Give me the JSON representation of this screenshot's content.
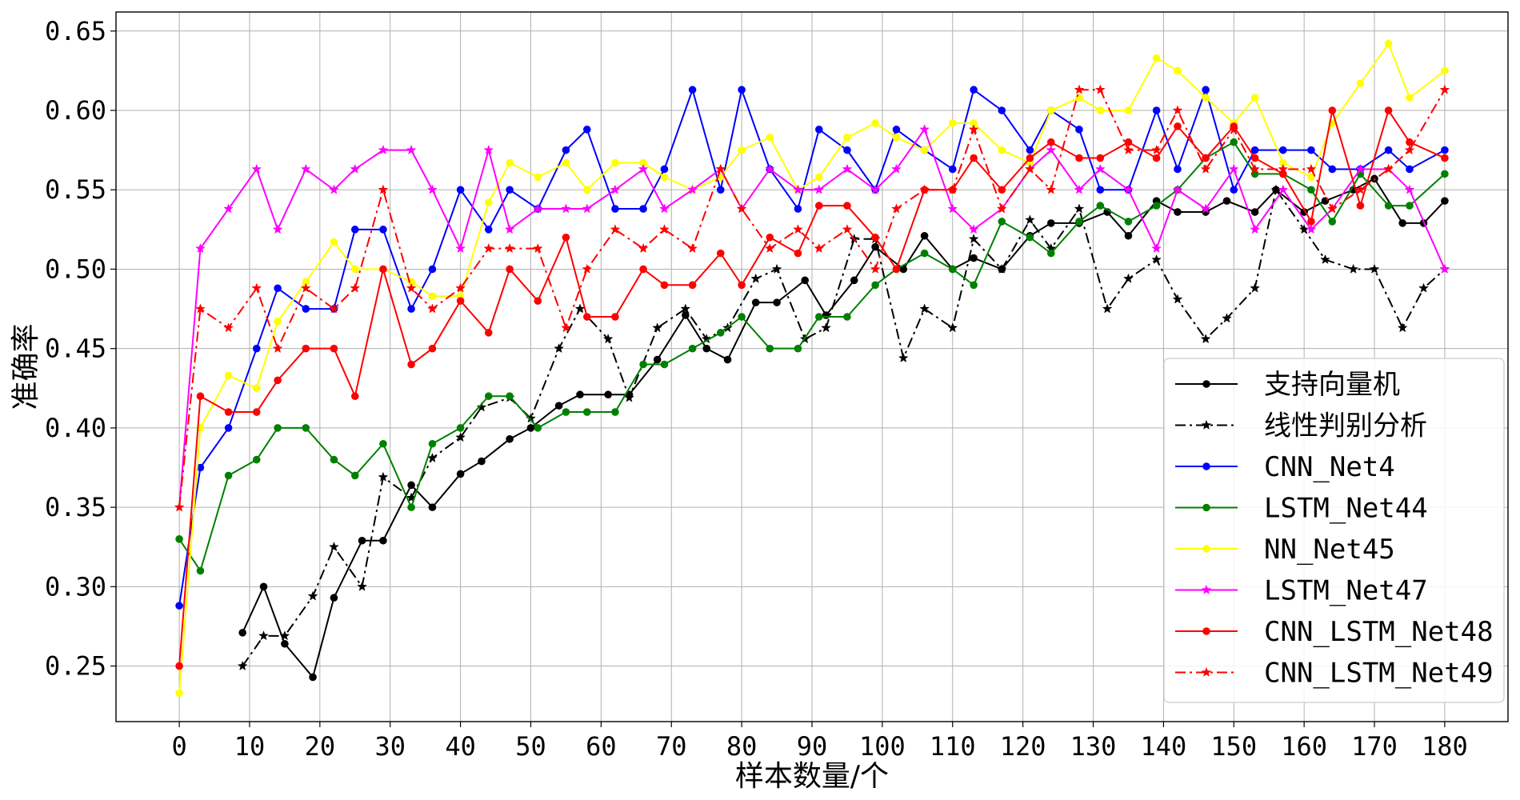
{
  "chart_data": {
    "type": "line",
    "title": "",
    "xlabel": "样本数量/个",
    "ylabel": "准确率",
    "xlim": [
      -9,
      189
    ],
    "ylim": [
      0.215,
      0.662
    ],
    "xticks": [
      0,
      10,
      20,
      30,
      40,
      50,
      60,
      70,
      80,
      90,
      100,
      110,
      120,
      130,
      140,
      150,
      160,
      170,
      180
    ],
    "yticks": [
      0.25,
      0.3,
      0.35,
      0.4,
      0.45,
      0.5,
      0.55,
      0.6,
      0.65
    ],
    "ytick_labels": [
      "0.25",
      "0.30",
      "0.35",
      "0.40",
      "0.45",
      "0.50",
      "0.55",
      "0.60",
      "0.65"
    ],
    "grid": true,
    "legend_position": "lower-right",
    "series": [
      {
        "name": "支持向量机",
        "color": "#000000",
        "dash": "solid",
        "marker": "circle",
        "x": [
          9,
          12,
          15,
          19,
          22,
          26,
          29,
          33,
          36,
          40,
          43,
          47,
          50,
          54,
          57,
          61,
          64,
          68,
          72,
          75,
          78,
          82,
          85,
          89,
          92,
          96,
          99,
          103,
          106,
          110,
          113,
          117,
          121,
          124,
          128,
          132,
          135,
          139,
          142,
          146,
          149,
          153,
          156,
          160,
          163,
          167,
          170,
          174,
          177,
          180
        ],
        "y": [
          0.271,
          0.3,
          0.264,
          0.243,
          0.293,
          0.329,
          0.329,
          0.364,
          0.35,
          0.371,
          0.379,
          0.393,
          0.4,
          0.414,
          0.421,
          0.421,
          0.421,
          0.443,
          0.471,
          0.45,
          0.443,
          0.479,
          0.479,
          0.493,
          0.471,
          0.493,
          0.514,
          0.5,
          0.521,
          0.5,
          0.507,
          0.5,
          0.521,
          0.529,
          0.529,
          0.536,
          0.521,
          0.543,
          0.536,
          0.536,
          0.543,
          0.536,
          0.55,
          0.536,
          0.543,
          0.55,
          0.557,
          0.529,
          0.529,
          0.543
        ]
      },
      {
        "name": "线性判别分析",
        "color": "#000000",
        "dash": "dashdot",
        "marker": "star",
        "x": [
          9,
          12,
          15,
          19,
          22,
          26,
          29,
          33,
          36,
          40,
          43,
          47,
          50,
          54,
          57,
          61,
          64,
          68,
          72,
          75,
          78,
          82,
          85,
          89,
          92,
          96,
          99,
          103,
          106,
          110,
          113,
          117,
          121,
          124,
          128,
          132,
          135,
          139,
          142,
          146,
          149,
          153,
          156,
          160,
          163,
          167,
          170,
          174,
          177,
          180
        ],
        "y": [
          0.25,
          0.269,
          0.269,
          0.294,
          0.325,
          0.3,
          0.369,
          0.356,
          0.381,
          0.394,
          0.413,
          0.419,
          0.406,
          0.45,
          0.475,
          0.456,
          0.419,
          0.463,
          0.475,
          0.456,
          0.463,
          0.494,
          0.5,
          0.456,
          0.463,
          0.519,
          0.519,
          0.444,
          0.475,
          0.463,
          0.519,
          0.5,
          0.531,
          0.513,
          0.538,
          0.475,
          0.494,
          0.506,
          0.481,
          0.456,
          0.469,
          0.488,
          0.55,
          0.525,
          0.506,
          0.5,
          0.5,
          0.463,
          0.488,
          0.5
        ]
      },
      {
        "name": "CNN_Net4",
        "color": "#0000ff",
        "dash": "solid",
        "marker": "circle",
        "x": [
          0,
          3,
          7,
          11,
          14,
          18,
          22,
          25,
          29,
          33,
          36,
          40,
          44,
          47,
          51,
          55,
          58,
          62,
          66,
          69,
          73,
          77,
          80,
          84,
          88,
          91,
          95,
          99,
          102,
          106,
          110,
          113,
          117,
          121,
          124,
          128,
          131,
          135,
          139,
          142,
          146,
          150,
          153,
          157,
          161,
          164,
          168,
          172,
          175,
          180
        ],
        "y": [
          0.288,
          0.375,
          0.4,
          0.45,
          0.488,
          0.475,
          0.475,
          0.525,
          0.525,
          0.475,
          0.5,
          0.55,
          0.525,
          0.55,
          0.538,
          0.575,
          0.588,
          0.538,
          0.538,
          0.563,
          0.613,
          0.55,
          0.613,
          0.563,
          0.538,
          0.588,
          0.575,
          0.55,
          0.588,
          0.575,
          0.563,
          0.613,
          0.6,
          0.575,
          0.6,
          0.588,
          0.55,
          0.55,
          0.6,
          0.563,
          0.613,
          0.55,
          0.575,
          0.575,
          0.575,
          0.563,
          0.563,
          0.575,
          0.563,
          0.575
        ]
      },
      {
        "name": "LSTM_Net44",
        "color": "#008000",
        "dash": "solid",
        "marker": "circle",
        "x": [
          0,
          3,
          7,
          11,
          14,
          18,
          22,
          25,
          29,
          33,
          36,
          40,
          44,
          47,
          51,
          55,
          58,
          62,
          66,
          69,
          73,
          77,
          80,
          84,
          88,
          91,
          95,
          99,
          102,
          106,
          110,
          113,
          117,
          121,
          124,
          128,
          131,
          135,
          139,
          142,
          146,
          150,
          153,
          157,
          161,
          164,
          168,
          172,
          175,
          180
        ],
        "y": [
          0.33,
          0.31,
          0.37,
          0.38,
          0.4,
          0.4,
          0.38,
          0.37,
          0.39,
          0.35,
          0.39,
          0.4,
          0.42,
          0.42,
          0.4,
          0.41,
          0.41,
          0.41,
          0.44,
          0.44,
          0.45,
          0.46,
          0.47,
          0.45,
          0.45,
          0.47,
          0.47,
          0.49,
          0.5,
          0.51,
          0.5,
          0.49,
          0.53,
          0.52,
          0.51,
          0.53,
          0.54,
          0.53,
          0.54,
          0.55,
          0.57,
          0.58,
          0.56,
          0.56,
          0.55,
          0.53,
          0.56,
          0.54,
          0.54,
          0.56
        ]
      },
      {
        "name": "NN_Net45",
        "color": "#ffff00",
        "dash": "solid",
        "marker": "circle",
        "x": [
          0,
          3,
          7,
          11,
          14,
          18,
          22,
          25,
          29,
          33,
          36,
          40,
          44,
          47,
          51,
          55,
          58,
          62,
          66,
          69,
          73,
          77,
          80,
          84,
          88,
          91,
          95,
          99,
          102,
          106,
          110,
          113,
          117,
          121,
          124,
          128,
          131,
          135,
          139,
          142,
          146,
          150,
          153,
          157,
          161,
          164,
          168,
          172,
          175,
          180
        ],
        "y": [
          0.233,
          0.4,
          0.433,
          0.425,
          0.467,
          0.492,
          0.517,
          0.5,
          0.5,
          0.492,
          0.483,
          0.483,
          0.542,
          0.567,
          0.558,
          0.567,
          0.55,
          0.567,
          0.567,
          0.558,
          0.55,
          0.558,
          0.575,
          0.583,
          0.55,
          0.558,
          0.583,
          0.592,
          0.583,
          0.575,
          0.592,
          0.592,
          0.575,
          0.567,
          0.6,
          0.608,
          0.6,
          0.6,
          0.633,
          0.625,
          0.608,
          0.592,
          0.608,
          0.567,
          0.558,
          0.592,
          0.617,
          0.642,
          0.608,
          0.625
        ]
      },
      {
        "name": "LSTM_Net47",
        "color": "#ff00ff",
        "dash": "solid",
        "marker": "star",
        "x": [
          0,
          3,
          7,
          11,
          14,
          18,
          22,
          25,
          29,
          33,
          36,
          40,
          44,
          47,
          51,
          55,
          58,
          62,
          66,
          69,
          73,
          77,
          80,
          84,
          88,
          91,
          95,
          99,
          102,
          106,
          110,
          113,
          117,
          121,
          124,
          128,
          131,
          135,
          139,
          142,
          146,
          150,
          153,
          157,
          161,
          164,
          168,
          172,
          175,
          180
        ],
        "y": [
          0.35,
          0.513,
          0.538,
          0.563,
          0.525,
          0.563,
          0.55,
          0.563,
          0.575,
          0.575,
          0.55,
          0.513,
          0.575,
          0.525,
          0.538,
          0.538,
          0.538,
          0.55,
          0.563,
          0.538,
          0.55,
          0.563,
          0.538,
          0.563,
          0.55,
          0.55,
          0.563,
          0.55,
          0.563,
          0.588,
          0.538,
          0.525,
          0.538,
          0.563,
          0.575,
          0.55,
          0.563,
          0.55,
          0.513,
          0.55,
          0.538,
          0.563,
          0.525,
          0.55,
          0.525,
          0.538,
          0.563,
          0.563,
          0.55,
          0.5
        ]
      },
      {
        "name": "CNN_LSTM_Net48",
        "color": "#ff0000",
        "dash": "solid",
        "marker": "circle",
        "x": [
          0,
          3,
          7,
          11,
          14,
          18,
          22,
          25,
          29,
          33,
          36,
          40,
          44,
          47,
          51,
          55,
          58,
          62,
          66,
          69,
          73,
          77,
          80,
          84,
          88,
          91,
          95,
          99,
          102,
          106,
          110,
          113,
          117,
          121,
          124,
          128,
          131,
          135,
          139,
          142,
          146,
          150,
          153,
          157,
          161,
          164,
          168,
          172,
          175,
          180
        ],
        "y": [
          0.25,
          0.42,
          0.41,
          0.41,
          0.43,
          0.45,
          0.45,
          0.42,
          0.5,
          0.44,
          0.45,
          0.48,
          0.46,
          0.5,
          0.48,
          0.52,
          0.47,
          0.47,
          0.5,
          0.49,
          0.49,
          0.51,
          0.49,
          0.52,
          0.51,
          0.54,
          0.54,
          0.52,
          0.5,
          0.55,
          0.55,
          0.57,
          0.55,
          0.57,
          0.58,
          0.57,
          0.57,
          0.58,
          0.57,
          0.59,
          0.57,
          0.59,
          0.57,
          0.56,
          0.53,
          0.6,
          0.54,
          0.6,
          0.58,
          0.57
        ]
      },
      {
        "name": "CNN_LSTM_Net49",
        "color": "#ff0000",
        "dash": "dashdot",
        "marker": "star",
        "x": [
          0,
          3,
          7,
          11,
          14,
          18,
          22,
          25,
          29,
          33,
          36,
          40,
          44,
          47,
          51,
          55,
          58,
          62,
          66,
          69,
          73,
          77,
          80,
          84,
          88,
          91,
          95,
          99,
          102,
          106,
          110,
          113,
          117,
          121,
          124,
          128,
          131,
          135,
          139,
          142,
          146,
          150,
          153,
          157,
          161,
          164,
          168,
          172,
          175,
          180
        ],
        "y": [
          0.35,
          0.475,
          0.463,
          0.488,
          0.45,
          0.488,
          0.475,
          0.488,
          0.55,
          0.488,
          0.475,
          0.488,
          0.513,
          0.513,
          0.513,
          0.463,
          0.5,
          0.525,
          0.513,
          0.525,
          0.513,
          0.563,
          0.538,
          0.513,
          0.525,
          0.513,
          0.525,
          0.5,
          0.538,
          0.55,
          0.55,
          0.588,
          0.538,
          0.563,
          0.55,
          0.613,
          0.613,
          0.575,
          0.575,
          0.6,
          0.563,
          0.588,
          0.563,
          0.563,
          0.563,
          0.538,
          0.55,
          0.563,
          0.575,
          0.613
        ]
      }
    ]
  }
}
